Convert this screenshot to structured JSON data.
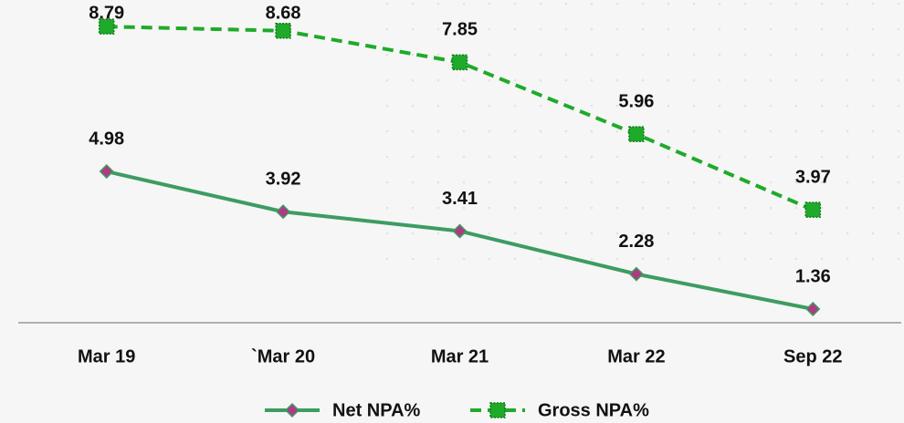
{
  "chart_data": {
    "type": "line",
    "categories": [
      "Mar 19",
      "`Mar 20",
      "Mar 21",
      "Mar 22",
      "Sep 22"
    ],
    "series": [
      {
        "name": "Net NPA%",
        "color": "#3d9c62",
        "marker_color": "#b03a82",
        "values": [
          4.98,
          3.92,
          3.41,
          2.28,
          1.36
        ]
      },
      {
        "name": "Gross NPA%",
        "color": "#1faa2a",
        "dashed": true,
        "values": [
          8.79,
          8.68,
          7.85,
          5.96,
          3.97
        ]
      }
    ],
    "ylim": [
      1,
      9
    ],
    "legend": "bottom"
  }
}
